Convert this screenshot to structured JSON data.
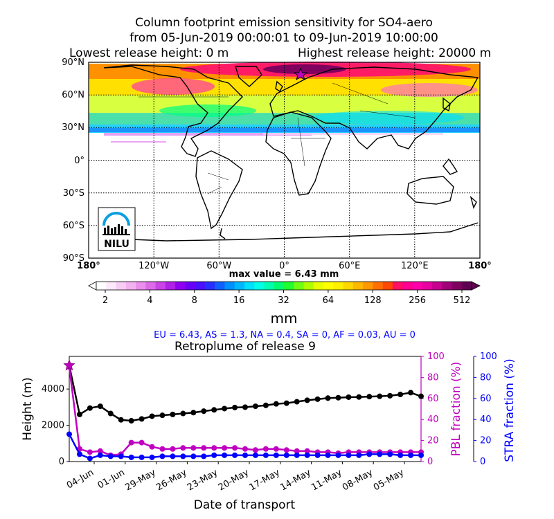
{
  "map": {
    "title_lines": [
      "Column footprint emission sensitivity for SO4-aero",
      "from 05-Jun-2019 00:00:01 to 09-Jun-2019 10:00:00"
    ],
    "release_low": "Lowest release height: 0 m",
    "release_high": "Highest release height: 20000 m",
    "lat_labels": [
      "90°N",
      "60°N",
      "30°N",
      "0°",
      "30°S",
      "60°S",
      "90°S"
    ],
    "lon_labels": [
      "180°",
      "120°W",
      "60°W",
      "0°",
      "60°E",
      "120°E",
      "180°"
    ],
    "max_value": "max value = 6.43 mm",
    "logo_text": "NILU"
  },
  "colorbar": {
    "ticks": [
      "2",
      "4",
      "8",
      "16",
      "32",
      "64",
      "128",
      "256",
      "512"
    ],
    "unit": "mm",
    "colors": [
      "#ffffff",
      "#fde9fb",
      "#f8cdf5",
      "#f2b2f0",
      "#e98fec",
      "#dd6be8",
      "#c844e6",
      "#b020e8",
      "#9000f0",
      "#6a00f8",
      "#4a10ff",
      "#2830ff",
      "#1060ff",
      "#0090ff",
      "#00b8ff",
      "#00e0ff",
      "#00ffe8",
      "#00ffb0",
      "#00ff70",
      "#20ff30",
      "#70ff10",
      "#b0ff00",
      "#e8ff00",
      "#ffff00",
      "#fff000",
      "#ffd800",
      "#ffb800",
      "#ff9800",
      "#ff7000",
      "#ff4800",
      "#ff1060",
      "#ff0090",
      "#ff00a8",
      "#e800a0",
      "#c80090",
      "#a00078",
      "#800060",
      "#600050"
    ]
  },
  "fractions_text": "EU = 6.43,  AS = 1.3,  NA = 0.4,  SA = 0,  AF = 0.03,  AU = 0",
  "chart_data": {
    "type": "line",
    "title": "Retroplume of release 9",
    "xlabel": "Date of transport",
    "ylabel_left": "Height (m)",
    "ylabel_right1": "PBL fraction (%)",
    "ylabel_right2": "STRA fraction (%)",
    "x_tick_labels": [
      "04-Jun",
      "01-Jun",
      "29-May",
      "26-May",
      "23-May",
      "20-May",
      "17-May",
      "14-May",
      "11-May",
      "08-May",
      "05-May"
    ],
    "left_yticks": [
      "0",
      "2000",
      "4000"
    ],
    "right_yticks": [
      "0",
      "20",
      "40",
      "60",
      "80",
      "100"
    ],
    "ylim_height": [
      0,
      5800
    ],
    "ylim_fraction": [
      0,
      100
    ],
    "series": [
      {
        "name": "Height",
        "color": "#000000",
        "values": [
          5300,
          2600,
          2950,
          3050,
          2650,
          2300,
          2250,
          2350,
          2500,
          2550,
          2600,
          2650,
          2700,
          2780,
          2850,
          2920,
          2980,
          3000,
          3050,
          3100,
          3180,
          3220,
          3300,
          3380,
          3440,
          3500,
          3520,
          3550,
          3560,
          3580,
          3600,
          3630,
          3700,
          3800,
          3600
        ]
      },
      {
        "name": "PBL fraction",
        "color": "#c000c0",
        "values": [
          90,
          12,
          9,
          10,
          6,
          7,
          18,
          18,
          14,
          12,
          12,
          13,
          13,
          13,
          13,
          13,
          13,
          12,
          11,
          12,
          12,
          11,
          10,
          10,
          9,
          9,
          8,
          9,
          9,
          9,
          9,
          9,
          9,
          9,
          9
        ]
      },
      {
        "name": "STRA fraction",
        "color": "#0000ff",
        "values": [
          26,
          7,
          3,
          6,
          5,
          5,
          4,
          4,
          4,
          5,
          5,
          5,
          5,
          5,
          6,
          6,
          6,
          6,
          6,
          6,
          6,
          6,
          6,
          6,
          6,
          6,
          6,
          6,
          6,
          7,
          7,
          7,
          6,
          6,
          6
        ]
      }
    ],
    "release_marker": {
      "height": 5300,
      "color": "#c000c0"
    }
  }
}
